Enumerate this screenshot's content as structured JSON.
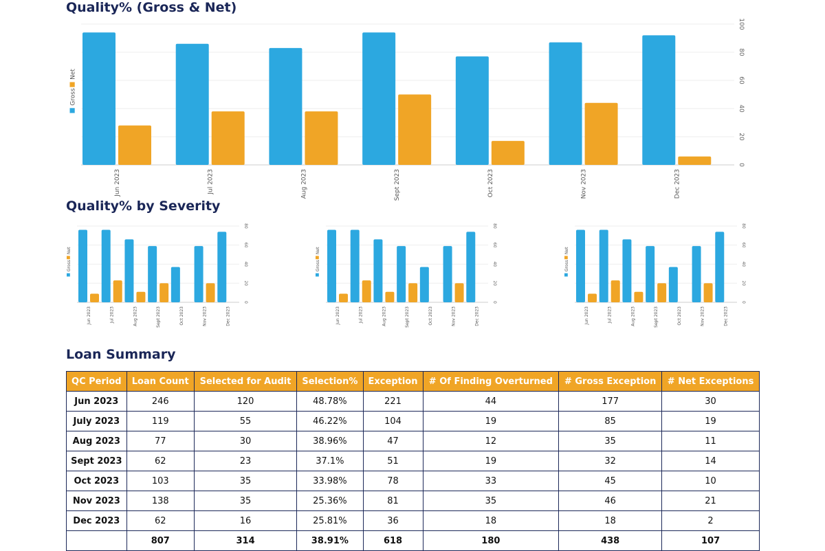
{
  "titles": {
    "main": "Quality% (Gross & Net)",
    "severity": "Quality% by Severity",
    "summary": "Loan Summary"
  },
  "colors": {
    "gross": "#2ca8e0",
    "net": "#f0a526",
    "title": "#1a2657"
  },
  "chart_data": [
    {
      "type": "bar",
      "categories": [
        "Jun 2023",
        "Jul 2023",
        "Aug 2023",
        "Sept 2023",
        "Oct 2023",
        "Nov 2023",
        "Dec 2023"
      ],
      "series": [
        {
          "name": "Gross",
          "values": [
            94,
            86,
            83,
            94,
            77,
            87,
            92
          ]
        },
        {
          "name": "Net",
          "values": [
            28,
            38,
            38,
            50,
            17,
            44,
            6
          ]
        }
      ],
      "ylim": [
        0,
        100
      ],
      "yticks": [
        0,
        20,
        40,
        60,
        80,
        100
      ],
      "grid": true,
      "legend": "left"
    },
    {
      "type": "bar",
      "categories": [
        "Jun 2023",
        "Jul 2023",
        "Aug 2023",
        "Sept 2023",
        "Oct 2023",
        "Nov 2023",
        "Dec 2023"
      ],
      "series": [
        {
          "name": "Gross",
          "values": [
            76,
            76,
            66,
            59,
            37,
            59,
            74
          ]
        },
        {
          "name": "Net",
          "values": [
            9,
            23,
            11,
            20,
            0,
            20,
            0
          ]
        }
      ],
      "ylim": [
        0,
        80
      ],
      "yticks": [
        0,
        20,
        40,
        60,
        80
      ],
      "grid": true,
      "legend": "left"
    },
    {
      "type": "bar",
      "categories": [
        "Jun 2023",
        "Jul 2023",
        "Aug 2023",
        "Sept 2023",
        "Oct 2023",
        "Nov 2023",
        "Dec 2023"
      ],
      "series": [
        {
          "name": "Gross",
          "values": [
            76,
            76,
            66,
            59,
            37,
            59,
            74
          ]
        },
        {
          "name": "Net",
          "values": [
            9,
            23,
            11,
            20,
            0,
            20,
            0
          ]
        }
      ],
      "ylim": [
        0,
        80
      ],
      "yticks": [
        0,
        20,
        40,
        60,
        80
      ],
      "grid": true,
      "legend": "left"
    },
    {
      "type": "bar",
      "categories": [
        "Jun 2023",
        "Jul 2023",
        "Aug 2023",
        "Sept 2023",
        "Oct 2023",
        "Nov 2023",
        "Dec 2023"
      ],
      "series": [
        {
          "name": "Gross",
          "values": [
            76,
            76,
            66,
            59,
            37,
            59,
            74
          ]
        },
        {
          "name": "Net",
          "values": [
            9,
            23,
            11,
            20,
            0,
            20,
            0
          ]
        }
      ],
      "ylim": [
        0,
        80
      ],
      "yticks": [
        0,
        20,
        40,
        60,
        80
      ],
      "grid": true,
      "legend": "left"
    }
  ],
  "table": {
    "headers": [
      "QC Period",
      "Loan Count",
      "Selected for Audit",
      "Selection%",
      "Exception",
      "# Of Finding Overturned",
      "# Gross Exception",
      "# Net Exceptions"
    ],
    "rows": [
      [
        "Jun 2023",
        "246",
        "120",
        "48.78%",
        "221",
        "44",
        "177",
        "30"
      ],
      [
        "July 2023",
        "119",
        "55",
        "46.22%",
        "104",
        "19",
        "85",
        "19"
      ],
      [
        "Aug 2023",
        "77",
        "30",
        "38.96%",
        "47",
        "12",
        "35",
        "11"
      ],
      [
        "Sept 2023",
        "62",
        "23",
        "37.1%",
        "51",
        "19",
        "32",
        "14"
      ],
      [
        "Oct 2023",
        "103",
        "35",
        "33.98%",
        "78",
        "33",
        "45",
        "10"
      ],
      [
        "Nov 2023",
        "138",
        "35",
        "25.36%",
        "81",
        "35",
        "46",
        "21"
      ],
      [
        "Dec 2023",
        "62",
        "16",
        "25.81%",
        "36",
        "18",
        "18",
        "2"
      ]
    ],
    "total": [
      "",
      "807",
      "314",
      "38.91%",
      "618",
      "180",
      "438",
      "107"
    ]
  }
}
